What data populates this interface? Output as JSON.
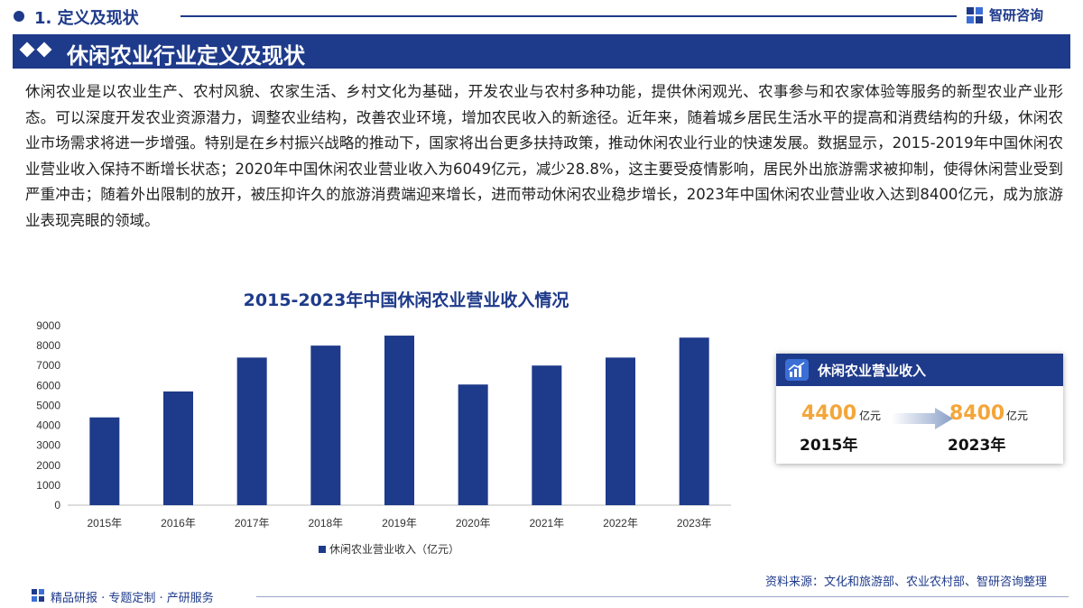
{
  "header": {
    "section": "1. 定义及现状",
    "brand": "智研咨询"
  },
  "title": "休闲农业行业定义及现状",
  "paragraph": "休闲农业是以农业生产、农村风貌、农家生活、乡村文化为基础，开发农业与农村多种功能，提供休闲观光、农事参与和农家体验等服务的新型农业产业形态。可以深度开发农业资源潜力，调整农业结构，改善农业环境，增加农民收入的新途径。近年来，随着城乡居民生活水平的提高和消费结构的升级，休闲农业市场需求将进一步增强。特别是在乡村振兴战略的推动下，国家将出台更多扶持政策，推动休闲农业行业的快速发展。数据显示，2015-2019年中国休闲农业营业收入保持不断增长状态；2020年中国休闲农业营业收入为6049亿元，减少28.8%，这主要受疫情影响，居民外出旅游需求被抑制，使得休闲营业受到严重冲击；随着外出限制的放开，被压抑许久的旅游消费端迎来增长，进而带动休闲农业稳步增长，2023年中国休闲农业营业收入达到8400亿元，成为旅游业表现亮眼的领域。",
  "chart_data": {
    "type": "bar",
    "title": "2015-2023年中国休闲农业营业收入情况",
    "categories": [
      "2015年",
      "2016年",
      "2017年",
      "2018年",
      "2019年",
      "2020年",
      "2021年",
      "2022年",
      "2023年"
    ],
    "series": [
      {
        "name": "休闲农业营业收入（亿元）",
        "values": [
          4400,
          5700,
          7400,
          8000,
          8500,
          6049,
          7000,
          7400,
          8400
        ]
      }
    ],
    "yticks": [
      "0",
      "1000",
      "2000",
      "3000",
      "4000",
      "5000",
      "6000",
      "7000",
      "8000",
      "9000"
    ],
    "ylim": [
      0,
      9000
    ],
    "grid": false,
    "legend": "bottom",
    "color": "#1e3a8a"
  },
  "summary_card": {
    "title": "休闲农业营业收入",
    "start_value": "4400",
    "start_unit": "亿元",
    "start_year": "2015年",
    "end_value": "8400",
    "end_unit": "亿元",
    "end_year": "2023年"
  },
  "source": "资料来源：文化和旅游部、农业农村部、智研咨询整理",
  "footer": "精品研报 · 专题定制 · 产研服务",
  "colors": {
    "primary": "#1e3a8a",
    "accent": "#f4a63a"
  }
}
